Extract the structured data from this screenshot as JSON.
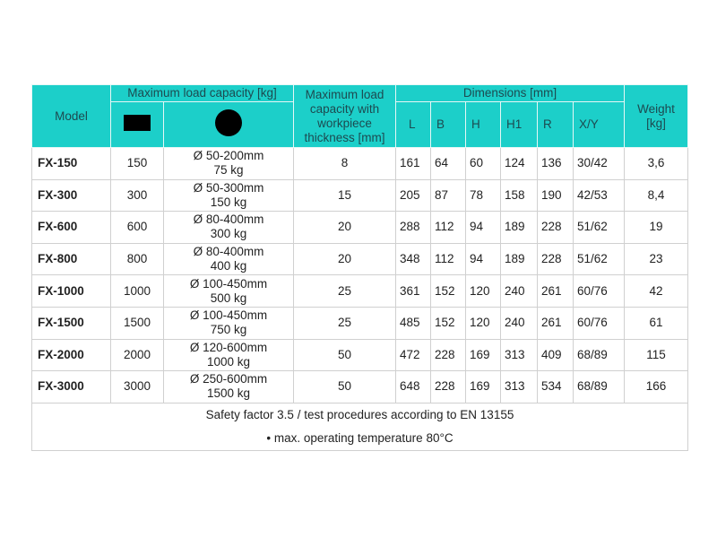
{
  "headers": {
    "model": "Model",
    "max_load": "Maximum load capacity [kg]",
    "thickness": "Maximum load capacity with workpiece thickness [mm]",
    "dimensions": "Dimensions [mm]",
    "weight": "Weight [kg]",
    "dims": [
      "L",
      "B",
      "H",
      "H1",
      "R",
      "X/Y"
    ],
    "flat_icon": "black-rectangle",
    "round_icon": "black-circle"
  },
  "colors": {
    "header_bg": "#1ccfc9"
  },
  "rows": [
    {
      "model": "FX-150",
      "flat": "150",
      "round1": "Ø 50-200mm",
      "round2": "75 kg",
      "thick": "8",
      "L": "161",
      "B": "64",
      "H": "60",
      "H1": "124",
      "R": "136",
      "XY": "30/42",
      "w": "3,6"
    },
    {
      "model": "FX-300",
      "flat": "300",
      "round1": "Ø 50-300mm",
      "round2": "150 kg",
      "thick": "15",
      "L": "205",
      "B": "87",
      "H": "78",
      "H1": "158",
      "R": "190",
      "XY": "42/53",
      "w": "8,4"
    },
    {
      "model": "FX-600",
      "flat": "600",
      "round1": "Ø 80-400mm",
      "round2": "300 kg",
      "thick": "20",
      "L": "288",
      "B": "112",
      "H": "94",
      "H1": "189",
      "R": "228",
      "XY": "51/62",
      "w": "19"
    },
    {
      "model": "FX-800",
      "flat": "800",
      "round1": "Ø 80-400mm",
      "round2": "400 kg",
      "thick": "20",
      "L": "348",
      "B": "112",
      "H": "94",
      "H1": "189",
      "R": "228",
      "XY": "51/62",
      "w": "23"
    },
    {
      "model": "FX-1000",
      "flat": "1000",
      "round1": "Ø 100-450mm",
      "round2": "500 kg",
      "thick": "25",
      "L": "361",
      "B": "152",
      "H": "120",
      "H1": "240",
      "R": "261",
      "XY": "60/76",
      "w": "42"
    },
    {
      "model": "FX-1500",
      "flat": "1500",
      "round1": "Ø 100-450mm",
      "round2": "750 kg",
      "thick": "25",
      "L": "485",
      "B": "152",
      "H": "120",
      "H1": "240",
      "R": "261",
      "XY": "60/76",
      "w": "61"
    },
    {
      "model": "FX-2000",
      "flat": "2000",
      "round1": "Ø 120-600mm",
      "round2": "1000 kg",
      "thick": "50",
      "L": "472",
      "B": "228",
      "H": "169",
      "H1": "313",
      "R": "409",
      "XY": "68/89",
      "w": "115"
    },
    {
      "model": "FX-3000",
      "flat": "3000",
      "round1": "Ø 250-600mm",
      "round2": "1500 kg",
      "thick": "50",
      "L": "648",
      "B": "228",
      "H": "169",
      "H1": "313",
      "R": "534",
      "XY": "68/89",
      "w": "166"
    }
  ],
  "footer": {
    "line1": "Safety factor 3.5 / test procedures according to EN 13155",
    "line2": "• max. operating temperature 80°C"
  }
}
